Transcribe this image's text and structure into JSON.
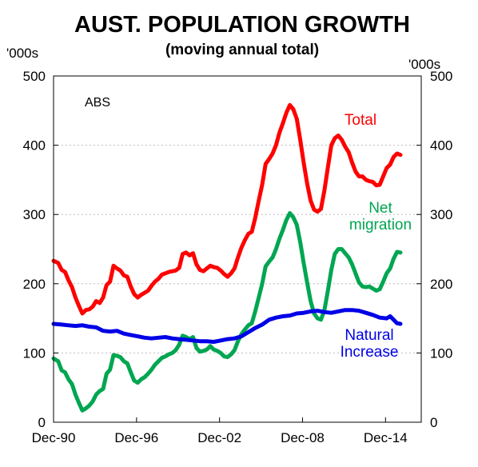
{
  "chart_data": {
    "type": "line",
    "title": "AUST. POPULATION GROWTH",
    "subtitle": "(moving annual total)",
    "units": {
      "left": "'000s",
      "right": "'000s"
    },
    "source": "ABS",
    "xlim": [
      1990.917,
      2017.5
    ],
    "ylim": [
      0,
      500
    ],
    "y_ticks": [
      0,
      100,
      200,
      300,
      400,
      500
    ],
    "x_ticks": [
      {
        "label": "Dec-90",
        "value": 1990.917
      },
      {
        "label": "Dec-96",
        "value": 1996.917
      },
      {
        "label": "Dec-02",
        "value": 2002.917
      },
      {
        "label": "Dec-08",
        "value": 2008.917
      },
      {
        "label": "Dec-14",
        "value": 2014.917
      }
    ],
    "grid": {
      "horizontal": true,
      "style": "dotted"
    },
    "series": [
      {
        "name": "Total",
        "color": "#ff0000",
        "label_lines": [
          "Total"
        ],
        "points": [
          [
            1990.917,
            233
          ],
          [
            1991.25,
            230
          ],
          [
            1991.5,
            220
          ],
          [
            1991.75,
            217
          ],
          [
            1992.0,
            205
          ],
          [
            1992.25,
            195
          ],
          [
            1992.5,
            180
          ],
          [
            1992.75,
            168
          ],
          [
            1993.0,
            157
          ],
          [
            1993.25,
            162
          ],
          [
            1993.5,
            163
          ],
          [
            1993.75,
            167
          ],
          [
            1994.0,
            175
          ],
          [
            1994.25,
            172
          ],
          [
            1994.5,
            180
          ],
          [
            1994.75,
            198
          ],
          [
            1995.0,
            203
          ],
          [
            1995.25,
            226
          ],
          [
            1995.5,
            222
          ],
          [
            1995.75,
            219
          ],
          [
            1996.0,
            212
          ],
          [
            1996.25,
            210
          ],
          [
            1996.5,
            196
          ],
          [
            1996.75,
            185
          ],
          [
            1997.0,
            180
          ],
          [
            1997.25,
            184
          ],
          [
            1997.5,
            187
          ],
          [
            1997.75,
            190
          ],
          [
            1998.0,
            197
          ],
          [
            1998.25,
            203
          ],
          [
            1998.5,
            207
          ],
          [
            1998.75,
            213
          ],
          [
            1999.0,
            215
          ],
          [
            1999.25,
            217
          ],
          [
            1999.5,
            218
          ],
          [
            1999.75,
            219
          ],
          [
            2000.0,
            223
          ],
          [
            2000.25,
            243
          ],
          [
            2000.5,
            245
          ],
          [
            2000.75,
            241
          ],
          [
            2001.0,
            244
          ],
          [
            2001.25,
            228
          ],
          [
            2001.5,
            220
          ],
          [
            2001.75,
            218
          ],
          [
            2002.0,
            222
          ],
          [
            2002.25,
            226
          ],
          [
            2002.5,
            224
          ],
          [
            2002.75,
            223
          ],
          [
            2003.0,
            219
          ],
          [
            2003.25,
            214
          ],
          [
            2003.5,
            210
          ],
          [
            2003.75,
            215
          ],
          [
            2004.0,
            222
          ],
          [
            2004.25,
            238
          ],
          [
            2004.5,
            252
          ],
          [
            2004.75,
            263
          ],
          [
            2005.0,
            272
          ],
          [
            2005.25,
            275
          ],
          [
            2005.5,
            295
          ],
          [
            2005.75,
            320
          ],
          [
            2006.0,
            343
          ],
          [
            2006.25,
            373
          ],
          [
            2006.5,
            380
          ],
          [
            2006.75,
            388
          ],
          [
            2007.0,
            400
          ],
          [
            2007.25,
            418
          ],
          [
            2007.5,
            432
          ],
          [
            2007.75,
            447
          ],
          [
            2008.0,
            458
          ],
          [
            2008.25,
            452
          ],
          [
            2008.5,
            438
          ],
          [
            2008.75,
            408
          ],
          [
            2009.0,
            375
          ],
          [
            2009.25,
            345
          ],
          [
            2009.5,
            320
          ],
          [
            2009.75,
            307
          ],
          [
            2010.0,
            304
          ],
          [
            2010.25,
            308
          ],
          [
            2010.5,
            335
          ],
          [
            2010.75,
            368
          ],
          [
            2011.0,
            400
          ],
          [
            2011.25,
            410
          ],
          [
            2011.5,
            414
          ],
          [
            2011.75,
            408
          ],
          [
            2012.0,
            398
          ],
          [
            2012.25,
            390
          ],
          [
            2012.5,
            375
          ],
          [
            2012.75,
            362
          ],
          [
            2013.0,
            355
          ],
          [
            2013.25,
            355
          ],
          [
            2013.5,
            350
          ],
          [
            2013.75,
            348
          ],
          [
            2014.0,
            347
          ],
          [
            2014.25,
            342
          ],
          [
            2014.5,
            343
          ],
          [
            2014.75,
            355
          ],
          [
            2015.0,
            367
          ],
          [
            2015.25,
            372
          ],
          [
            2015.5,
            383
          ],
          [
            2015.75,
            388
          ],
          [
            2016.0,
            386
          ]
        ]
      },
      {
        "name": "Net migration",
        "color": "#00a651",
        "label_lines": [
          "Net",
          "migration"
        ],
        "points": [
          [
            1990.917,
            92
          ],
          [
            1991.25,
            88
          ],
          [
            1991.5,
            75
          ],
          [
            1991.75,
            72
          ],
          [
            1992.0,
            62
          ],
          [
            1992.25,
            55
          ],
          [
            1992.5,
            40
          ],
          [
            1992.75,
            28
          ],
          [
            1993.0,
            17
          ],
          [
            1993.25,
            20
          ],
          [
            1993.5,
            24
          ],
          [
            1993.75,
            30
          ],
          [
            1994.0,
            40
          ],
          [
            1994.25,
            45
          ],
          [
            1994.5,
            48
          ],
          [
            1994.75,
            70
          ],
          [
            1995.0,
            76
          ],
          [
            1995.25,
            97
          ],
          [
            1995.5,
            96
          ],
          [
            1995.75,
            94
          ],
          [
            1996.0,
            88
          ],
          [
            1996.25,
            85
          ],
          [
            1996.5,
            72
          ],
          [
            1996.75,
            60
          ],
          [
            1997.0,
            57
          ],
          [
            1997.25,
            62
          ],
          [
            1997.5,
            65
          ],
          [
            1997.75,
            70
          ],
          [
            1998.0,
            76
          ],
          [
            1998.25,
            83
          ],
          [
            1998.5,
            88
          ],
          [
            1998.75,
            93
          ],
          [
            1999.0,
            95
          ],
          [
            1999.25,
            98
          ],
          [
            1999.5,
            100
          ],
          [
            1999.75,
            104
          ],
          [
            2000.0,
            112
          ],
          [
            2000.25,
            125
          ],
          [
            2000.5,
            123
          ],
          [
            2000.75,
            120
          ],
          [
            2001.0,
            123
          ],
          [
            2001.25,
            107
          ],
          [
            2001.5,
            102
          ],
          [
            2001.75,
            103
          ],
          [
            2002.0,
            105
          ],
          [
            2002.25,
            110
          ],
          [
            2002.5,
            105
          ],
          [
            2002.75,
            103
          ],
          [
            2003.0,
            100
          ],
          [
            2003.25,
            95
          ],
          [
            2003.5,
            94
          ],
          [
            2003.75,
            98
          ],
          [
            2004.0,
            104
          ],
          [
            2004.25,
            117
          ],
          [
            2004.5,
            127
          ],
          [
            2004.75,
            134
          ],
          [
            2005.0,
            140
          ],
          [
            2005.25,
            143
          ],
          [
            2005.5,
            160
          ],
          [
            2005.75,
            180
          ],
          [
            2006.0,
            200
          ],
          [
            2006.25,
            225
          ],
          [
            2006.5,
            232
          ],
          [
            2006.75,
            238
          ],
          [
            2007.0,
            250
          ],
          [
            2007.25,
            265
          ],
          [
            2007.5,
            278
          ],
          [
            2007.75,
            292
          ],
          [
            2008.0,
            302
          ],
          [
            2008.25,
            296
          ],
          [
            2008.5,
            285
          ],
          [
            2008.75,
            260
          ],
          [
            2009.0,
            230
          ],
          [
            2009.25,
            202
          ],
          [
            2009.5,
            175
          ],
          [
            2009.75,
            157
          ],
          [
            2010.0,
            150
          ],
          [
            2010.25,
            148
          ],
          [
            2010.5,
            162
          ],
          [
            2010.75,
            190
          ],
          [
            2011.0,
            220
          ],
          [
            2011.25,
            243
          ],
          [
            2011.5,
            250
          ],
          [
            2011.75,
            250
          ],
          [
            2012.0,
            244
          ],
          [
            2012.25,
            238
          ],
          [
            2012.5,
            228
          ],
          [
            2012.75,
            215
          ],
          [
            2013.0,
            202
          ],
          [
            2013.25,
            196
          ],
          [
            2013.5,
            195
          ],
          [
            2013.75,
            196
          ],
          [
            2014.0,
            193
          ],
          [
            2014.25,
            190
          ],
          [
            2014.5,
            192
          ],
          [
            2014.75,
            203
          ],
          [
            2015.0,
            215
          ],
          [
            2015.25,
            222
          ],
          [
            2015.5,
            236
          ],
          [
            2015.75,
            246
          ],
          [
            2016.0,
            245
          ]
        ]
      },
      {
        "name": "Natural Increase",
        "color": "#0000e6",
        "label_lines": [
          "Natural",
          "Increase"
        ],
        "points": [
          [
            1990.917,
            142
          ],
          [
            1991.5,
            141
          ],
          [
            1992.0,
            140
          ],
          [
            1992.5,
            139
          ],
          [
            1993.0,
            140
          ],
          [
            1993.5,
            138
          ],
          [
            1994.0,
            137
          ],
          [
            1994.5,
            132
          ],
          [
            1995.0,
            131
          ],
          [
            1995.5,
            132
          ],
          [
            1996.0,
            128
          ],
          [
            1996.5,
            126
          ],
          [
            1997.0,
            124
          ],
          [
            1997.5,
            122
          ],
          [
            1998.0,
            121
          ],
          [
            1998.5,
            122
          ],
          [
            1999.0,
            123
          ],
          [
            1999.5,
            121
          ],
          [
            2000.0,
            120
          ],
          [
            2000.5,
            119
          ],
          [
            2001.0,
            118
          ],
          [
            2001.5,
            117
          ],
          [
            2002.0,
            117
          ],
          [
            2002.5,
            116
          ],
          [
            2003.0,
            118
          ],
          [
            2003.5,
            120
          ],
          [
            2004.0,
            121
          ],
          [
            2004.5,
            124
          ],
          [
            2005.0,
            130
          ],
          [
            2005.5,
            136
          ],
          [
            2006.0,
            141
          ],
          [
            2006.5,
            148
          ],
          [
            2007.0,
            151
          ],
          [
            2007.5,
            153
          ],
          [
            2008.0,
            154
          ],
          [
            2008.5,
            157
          ],
          [
            2009.0,
            158
          ],
          [
            2009.5,
            160
          ],
          [
            2010.0,
            161
          ],
          [
            2010.5,
            159
          ],
          [
            2011.0,
            158
          ],
          [
            2011.5,
            160
          ],
          [
            2012.0,
            162
          ],
          [
            2012.5,
            162
          ],
          [
            2013.0,
            161
          ],
          [
            2013.5,
            158
          ],
          [
            2014.0,
            155
          ],
          [
            2014.5,
            151
          ],
          [
            2015.0,
            150
          ],
          [
            2015.25,
            153
          ],
          [
            2015.5,
            148
          ],
          [
            2015.75,
            143
          ],
          [
            2016.0,
            142
          ]
        ]
      }
    ]
  }
}
